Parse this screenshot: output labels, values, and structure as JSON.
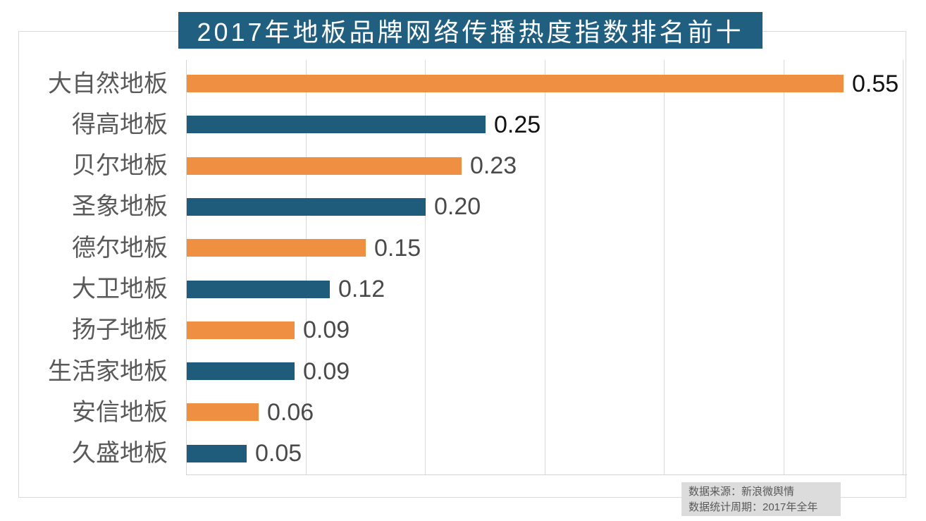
{
  "title": "2017年地板品牌网络传播热度指数排名前十",
  "footer": {
    "source": "数据来源：新浪微舆情",
    "period": "数据统计周期：2017年全年"
  },
  "colors": {
    "banner_bg": "#215f80",
    "bar_orange": "#ee8f42",
    "bar_blue": "#1f5b7b",
    "grid": "#d9d9d9",
    "category_label": "#595959",
    "value_black": "#111111",
    "value_gray": "#4a4a4a",
    "footer_bg": "#dcdcdc"
  },
  "chart_data": {
    "type": "bar",
    "orientation": "horizontal",
    "title": "2017年地板品牌网络传播热度指数排名前十",
    "categories": [
      "大自然地板",
      "得高地板",
      "贝尔地板",
      "圣象地板",
      "德尔地板",
      "大卫地板",
      "扬子地板",
      "生活家地板",
      "安信地板",
      "久盛地板"
    ],
    "values": [
      0.55,
      0.25,
      0.23,
      0.2,
      0.15,
      0.12,
      0.09,
      0.09,
      0.06,
      0.05
    ],
    "value_labels": [
      "0.55",
      "0.25",
      "0.23",
      "0.20",
      "0.15",
      "0.12",
      "0.09",
      "0.09",
      "0.06",
      "0.05"
    ],
    "value_label_colors": [
      "black",
      "black",
      "gray",
      "gray",
      "gray",
      "gray",
      "gray",
      "gray",
      "gray",
      "gray"
    ],
    "bar_color_sequence": [
      "orange",
      "blue",
      "orange",
      "blue",
      "orange",
      "blue",
      "orange",
      "blue",
      "orange",
      "blue"
    ],
    "xlim": [
      0,
      0.6
    ],
    "grid_step": 0.1,
    "grid": true,
    "legend": false,
    "xlabel": "",
    "ylabel": ""
  }
}
